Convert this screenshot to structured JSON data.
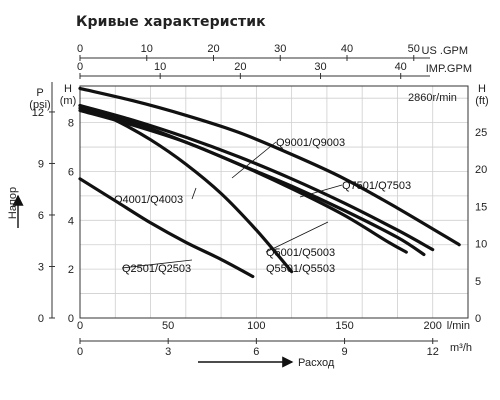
{
  "title": "Кривые характеристик",
  "speed_note": "2860r/min",
  "left_axis_label": "Напор",
  "bottom_axis_label": "Расход",
  "axes": {
    "us_gpm": {
      "unit": "US .GPM",
      "ticks": [
        "0",
        "10",
        "20",
        "30",
        "40",
        "50"
      ]
    },
    "imp_gpm": {
      "unit": "IMP.GPM",
      "ticks": [
        "0",
        "10",
        "20",
        "30",
        "40"
      ]
    },
    "lmin": {
      "unit": "l/min",
      "ticks": [
        "0",
        "50",
        "100",
        "150",
        "200"
      ]
    },
    "m3h": {
      "unit": "m³/h",
      "ticks": [
        "0",
        "3",
        "6",
        "9",
        "12"
      ]
    },
    "psi": {
      "unit_top": "P",
      "unit": "(psi)",
      "ticks": [
        "0",
        "3",
        "6",
        "9",
        "12"
      ]
    },
    "head_m": {
      "unit_top": "H",
      "unit": "(m)",
      "ticks": [
        "0",
        "2",
        "4",
        "6",
        "8"
      ]
    },
    "head_ft": {
      "unit_top": "H",
      "unit": "(ft)",
      "ticks": [
        "0",
        "5",
        "10",
        "15",
        "20",
        "25"
      ]
    }
  },
  "chart_data": {
    "type": "line",
    "title": "Кривые характеристик",
    "xlabel": "Расход",
    "ylabel": "Напор",
    "x_unit": "l/min",
    "y_unit": "m",
    "xlim": [
      0,
      220
    ],
    "ylim": [
      0,
      9.5
    ],
    "grid": true,
    "series": [
      {
        "name": "Q2501/Q2503",
        "x": [
          0,
          20,
          40,
          60,
          80,
          98
        ],
        "y": [
          5.7,
          4.8,
          3.9,
          3.1,
          2.4,
          1.7
        ]
      },
      {
        "name": "Q4001/Q4003",
        "x": [
          0,
          20,
          40,
          60,
          80,
          100,
          120
        ],
        "y": [
          8.7,
          8.1,
          7.3,
          6.3,
          5.1,
          3.6,
          1.9
        ]
      },
      {
        "name": "Q5001/Q5003",
        "x": [
          0,
          30,
          60,
          90,
          120,
          150,
          180,
          195
        ],
        "y": [
          8.5,
          7.9,
          7.2,
          6.3,
          5.4,
          4.4,
          3.3,
          2.6
        ]
      },
      {
        "name": "Q5501/Q5503",
        "x": [
          0,
          30,
          60,
          90,
          120,
          150,
          175,
          185
        ],
        "y": [
          8.6,
          8.0,
          7.2,
          6.3,
          5.3,
          4.2,
          3.1,
          2.7
        ]
      },
      {
        "name": "Q7501/Q7503",
        "x": [
          0,
          30,
          60,
          90,
          120,
          150,
          180,
          200
        ],
        "y": [
          8.7,
          8.1,
          7.4,
          6.6,
          5.7,
          4.7,
          3.6,
          2.8
        ]
      },
      {
        "name": "Q9001/Q9003",
        "x": [
          0,
          30,
          60,
          90,
          120,
          150,
          180,
          215
        ],
        "y": [
          9.4,
          8.9,
          8.3,
          7.6,
          6.7,
          5.7,
          4.5,
          3.0
        ]
      }
    ]
  }
}
